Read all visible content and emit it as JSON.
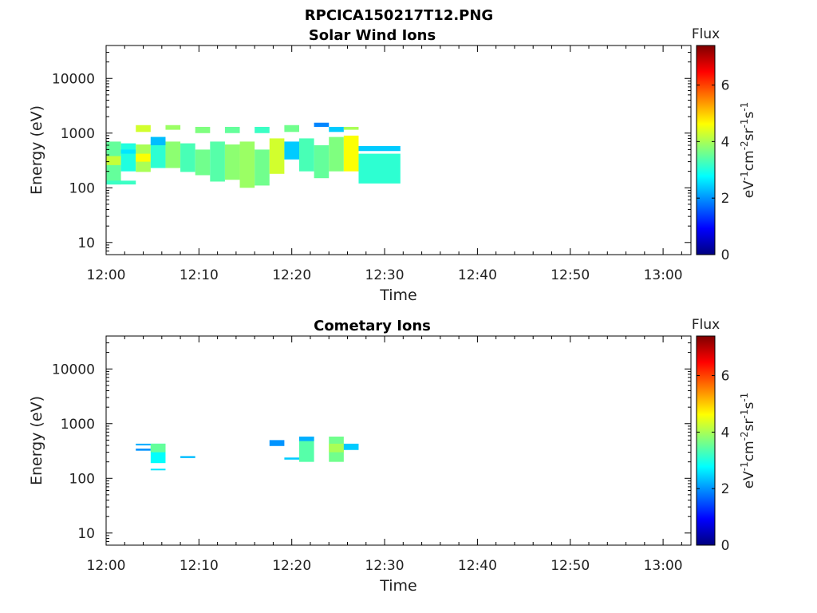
{
  "figure": {
    "title": "RPCICA150217T12.PNG",
    "colors": {
      "background": "#ffffff",
      "axis": "#000000",
      "colormap": [
        "#00007f",
        "#0000ff",
        "#007fff",
        "#00ffff",
        "#7fff7f",
        "#ffff00",
        "#ff7f00",
        "#ff0000",
        "#7f0000"
      ]
    }
  },
  "chart_data": [
    {
      "type": "heatmap",
      "title": "Solar Wind Ions",
      "xlabel": "Time",
      "ylabel": "Energy (eV)",
      "x_tick_labels": [
        "12:00",
        "12:10",
        "12:20",
        "12:30",
        "12:40",
        "12:50",
        "13:00"
      ],
      "x_range_minutes": [
        0,
        63
      ],
      "y_scale": "log",
      "y_tick_labels": [
        "10",
        "100",
        "1000",
        "10000"
      ],
      "y_range": [
        6,
        40000
      ],
      "colorbar": {
        "title": "Flux",
        "label": "eV-1cm-2sr-1s-1",
        "ticks": [
          "0",
          "2",
          "4",
          "6"
        ],
        "range": [
          0,
          7.4
        ]
      },
      "cells": [
        {
          "t0": 0.0,
          "t1": 1.6,
          "e0": 115,
          "e1": 700,
          "flux": 3.5
        },
        {
          "t0": 0.0,
          "t1": 1.6,
          "e0": 260,
          "e1": 380,
          "flux": 4.2
        },
        {
          "t0": 0.0,
          "t1": 3.2,
          "e0": 115,
          "e1": 135,
          "flux": 3.2
        },
        {
          "t0": 1.6,
          "t1": 3.2,
          "e0": 200,
          "e1": 650,
          "flux": 3.0
        },
        {
          "t0": 1.6,
          "t1": 3.2,
          "e0": 420,
          "e1": 500,
          "flux": 2.6
        },
        {
          "t0": 3.2,
          "t1": 4.8,
          "e0": 195,
          "e1": 620,
          "flux": 4.0
        },
        {
          "t0": 3.2,
          "t1": 4.8,
          "e0": 300,
          "e1": 420,
          "flux": 4.6
        },
        {
          "t0": 3.2,
          "t1": 4.8,
          "e0": 1050,
          "e1": 1400,
          "flux": 4.3
        },
        {
          "t0": 4.8,
          "t1": 6.4,
          "e0": 230,
          "e1": 850,
          "flux": 3.1
        },
        {
          "t0": 4.8,
          "t1": 6.4,
          "e0": 600,
          "e1": 850,
          "flux": 2.3
        },
        {
          "t0": 6.4,
          "t1": 8.0,
          "e0": 230,
          "e1": 700,
          "flux": 3.8
        },
        {
          "t0": 6.4,
          "t1": 8.0,
          "e0": 1150,
          "e1": 1400,
          "flux": 3.9
        },
        {
          "t0": 8.0,
          "t1": 9.6,
          "e0": 195,
          "e1": 650,
          "flux": 3.3
        },
        {
          "t0": 9.6,
          "t1": 11.2,
          "e0": 170,
          "e1": 500,
          "flux": 3.6
        },
        {
          "t0": 9.6,
          "t1": 11.2,
          "e0": 1000,
          "e1": 1300,
          "flux": 3.7
        },
        {
          "t0": 11.2,
          "t1": 12.8,
          "e0": 130,
          "e1": 700,
          "flux": 3.4
        },
        {
          "t0": 12.8,
          "t1": 14.4,
          "e0": 140,
          "e1": 620,
          "flux": 3.8
        },
        {
          "t0": 12.8,
          "t1": 14.4,
          "e0": 1000,
          "e1": 1300,
          "flux": 3.5
        },
        {
          "t0": 14.4,
          "t1": 16.0,
          "e0": 100,
          "e1": 700,
          "flux": 3.9
        },
        {
          "t0": 16.0,
          "t1": 17.6,
          "e0": 110,
          "e1": 500,
          "flux": 3.6
        },
        {
          "t0": 16.0,
          "t1": 17.6,
          "e0": 1000,
          "e1": 1300,
          "flux": 3.2
        },
        {
          "t0": 17.6,
          "t1": 19.2,
          "e0": 180,
          "e1": 800,
          "flux": 4.3
        },
        {
          "t0": 19.2,
          "t1": 20.8,
          "e0": 330,
          "e1": 700,
          "flux": 2.4
        },
        {
          "t0": 19.2,
          "t1": 20.8,
          "e0": 1050,
          "e1": 1400,
          "flux": 3.6
        },
        {
          "t0": 20.8,
          "t1": 22.4,
          "e0": 200,
          "e1": 800,
          "flux": 3.3
        },
        {
          "t0": 22.4,
          "t1": 24.0,
          "e0": 150,
          "e1": 600,
          "flux": 3.5
        },
        {
          "t0": 22.4,
          "t1": 24.0,
          "e0": 1300,
          "e1": 1550,
          "flux": 1.9
        },
        {
          "t0": 24.0,
          "t1": 25.6,
          "e0": 200,
          "e1": 850,
          "flux": 3.7
        },
        {
          "t0": 24.0,
          "t1": 25.6,
          "e0": 1050,
          "e1": 1300,
          "flux": 2.4
        },
        {
          "t0": 25.6,
          "t1": 27.2,
          "e0": 200,
          "e1": 900,
          "flux": 4.6
        },
        {
          "t0": 25.6,
          "t1": 27.2,
          "e0": 1150,
          "e1": 1300,
          "flux": 4.0
        },
        {
          "t0": 27.2,
          "t1": 31.7,
          "e0": 120,
          "e1": 420,
          "flux": 3.1
        },
        {
          "t0": 27.2,
          "t1": 31.7,
          "e0": 470,
          "e1": 580,
          "flux": 2.4
        }
      ]
    },
    {
      "type": "heatmap",
      "title": "Cometary Ions",
      "xlabel": "Time",
      "ylabel": "Energy (eV)",
      "x_tick_labels": [
        "12:00",
        "12:10",
        "12:20",
        "12:30",
        "12:40",
        "12:50",
        "13:00"
      ],
      "x_range_minutes": [
        0,
        63
      ],
      "y_scale": "log",
      "y_tick_labels": [
        "10",
        "100",
        "1000",
        "10000"
      ],
      "y_range": [
        6,
        40000
      ],
      "colorbar": {
        "title": "Flux",
        "label": "eV-1cm-2sr-1s-1",
        "ticks": [
          "0",
          "2",
          "4",
          "6"
        ],
        "range": [
          0,
          7.4
        ]
      },
      "cells": [
        {
          "t0": 3.2,
          "t1": 4.8,
          "e0": 400,
          "e1": 430,
          "flux": 2.2
        },
        {
          "t0": 3.2,
          "t1": 4.8,
          "e0": 320,
          "e1": 350,
          "flux": 2.0
        },
        {
          "t0": 4.8,
          "t1": 6.4,
          "e0": 190,
          "e1": 430,
          "flux": 2.8
        },
        {
          "t0": 4.8,
          "t1": 6.4,
          "e0": 300,
          "e1": 430,
          "flux": 3.5
        },
        {
          "t0": 4.8,
          "t1": 6.4,
          "e0": 140,
          "e1": 150,
          "flux": 2.6
        },
        {
          "t0": 8.0,
          "t1": 9.6,
          "e0": 235,
          "e1": 255,
          "flux": 2.3
        },
        {
          "t0": 17.6,
          "t1": 19.2,
          "e0": 390,
          "e1": 500,
          "flux": 2.0
        },
        {
          "t0": 19.2,
          "t1": 20.8,
          "e0": 220,
          "e1": 240,
          "flux": 2.4
        },
        {
          "t0": 20.8,
          "t1": 22.4,
          "e0": 200,
          "e1": 580,
          "flux": 3.4
        },
        {
          "t0": 20.8,
          "t1": 22.4,
          "e0": 480,
          "e1": 580,
          "flux": 2.2
        },
        {
          "t0": 24.0,
          "t1": 25.6,
          "e0": 200,
          "e1": 580,
          "flux": 3.6
        },
        {
          "t0": 24.0,
          "t1": 25.6,
          "e0": 300,
          "e1": 430,
          "flux": 4.0
        },
        {
          "t0": 25.6,
          "t1": 27.2,
          "e0": 330,
          "e1": 430,
          "flux": 2.4
        }
      ]
    }
  ]
}
